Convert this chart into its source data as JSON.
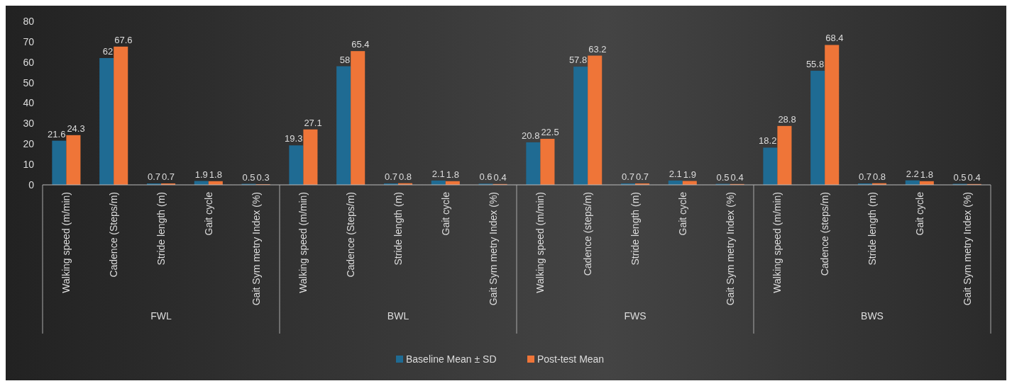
{
  "chart_data": {
    "type": "bar",
    "categories": [
      "Walking speed (m/min)",
      "Cadence (Steps/m)",
      "Stride length (m)",
      "Gait cycle",
      "Gait Sym metry Index (%)",
      "Walking speed (m/min)",
      "Cadence (Steps/m)",
      "Stride length (m)",
      "Gait cycle",
      "Gait Sym metry Index (%)",
      "Walking speed (m/min)",
      "Cadence (steps/m)",
      "Stride length (m)",
      "Gait cycle",
      "Gait Sym metry Index (%)",
      "Walking speed (m/min)",
      "Cadence (steps/m)",
      "Stride length (m)",
      "Gait cycle",
      "Gait Sym metry Index (%)"
    ],
    "series": [
      {
        "name": "Baseline Mean ± SD",
        "color": "#1f6b93",
        "values": [
          21.6,
          62,
          0.7,
          1.9,
          0.5,
          19.3,
          58,
          0.7,
          2.1,
          0.6,
          20.8,
          57.8,
          0.7,
          2.1,
          0.5,
          18.2,
          55.8,
          0.7,
          2.2,
          0.5
        ]
      },
      {
        "name": "Post-test Mean",
        "color": "#ef7538",
        "values": [
          24.3,
          67.6,
          0.7,
          1.8,
          0.3,
          27.1,
          65.4,
          0.8,
          1.8,
          0.4,
          22.5,
          63.2,
          0.7,
          1.9,
          0.4,
          28.8,
          68.4,
          0.8,
          1.8,
          0.4
        ]
      }
    ],
    "annotations": [
      "FWL",
      "BWL",
      "FWS",
      "BWS"
    ],
    "ylim": [
      0,
      80
    ],
    "yticks": [
      0,
      10,
      20,
      30,
      40,
      50,
      60,
      70,
      80
    ],
    "data_labels": true,
    "grid": false,
    "legend": "bottom"
  }
}
